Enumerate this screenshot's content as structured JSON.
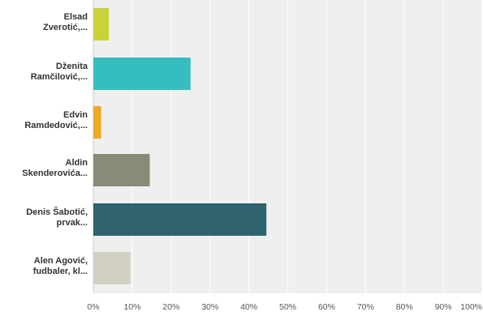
{
  "chart_data": {
    "type": "bar",
    "orientation": "horizontal",
    "categories": [
      [
        "Elsad",
        "Zverotić,..."
      ],
      [
        "Dženita",
        "Ramčilović,..."
      ],
      [
        "Edvin",
        "Ramdedović,..."
      ],
      [
        "Aldin",
        "Skenderovića..."
      ],
      [
        "Denis Šabotić,",
        "prvak..."
      ],
      [
        "Alen Agović,",
        "fudbaler, kl..."
      ]
    ],
    "values": [
      4,
      25,
      2,
      14.5,
      44.5,
      9.5
    ],
    "colors": [
      "#c9d13b",
      "#35bdc0",
      "#f2a727",
      "#898a77",
      "#2f6370",
      "#d2d0c3"
    ],
    "xlim": [
      0,
      100
    ],
    "xticks": [
      "0%",
      "10%",
      "20%",
      "30%",
      "40%",
      "50%",
      "60%",
      "70%",
      "80%",
      "90%",
      "100%"
    ],
    "grid": true,
    "title": "",
    "xlabel": "",
    "ylabel": ""
  }
}
